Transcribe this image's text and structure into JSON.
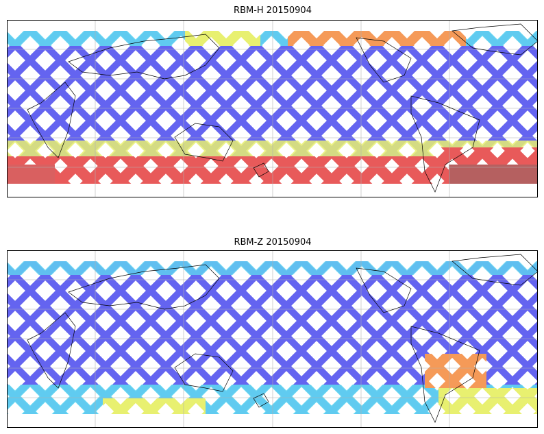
{
  "panels": [
    {
      "title": "RBM-H 20150904"
    },
    {
      "title": "RBM-Z 20150904"
    }
  ]
}
